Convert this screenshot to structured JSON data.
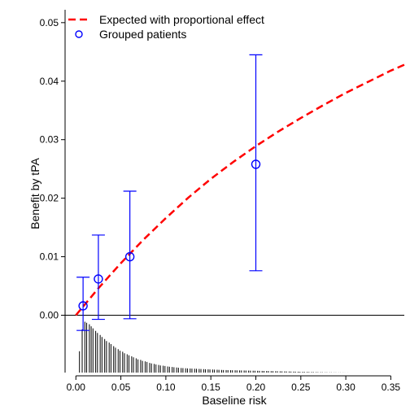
{
  "chart_data": {
    "type": "scatter",
    "xlabel": "Baseline risk",
    "ylabel": "Benefit by tPA",
    "xlim": [
      -0.012,
      0.365
    ],
    "ylim": [
      -0.0098,
      0.0522
    ],
    "xticks": [
      0.0,
      0.05,
      0.1,
      0.15,
      0.2,
      0.25,
      0.3,
      0.35
    ],
    "xtick_labels": [
      "0.00",
      "0.05",
      "0.10",
      "0.15",
      "0.20",
      "0.25",
      "0.30",
      "0.35"
    ],
    "yticks": [
      0.0,
      0.01,
      0.02,
      0.03,
      0.04,
      0.05
    ],
    "ytick_labels": [
      "0.00",
      "0.01",
      "0.02",
      "0.03",
      "0.04",
      "0.05"
    ],
    "legend_position": "top-left",
    "grid": false,
    "colors": {
      "expected": "#ff0000",
      "grouped": "#0000ff",
      "axis": "#000000"
    },
    "series": [
      {
        "name": "Expected with proportional effect",
        "kind": "dashed-line",
        "color": "#ff0000",
        "x": [
          0.0,
          0.025,
          0.05,
          0.075,
          0.1,
          0.125,
          0.15,
          0.175,
          0.2,
          0.225,
          0.25,
          0.275,
          0.3,
          0.325,
          0.35,
          0.365
        ],
        "y": [
          0.0,
          0.0046,
          0.0089,
          0.0129,
          0.0166,
          0.0201,
          0.0233,
          0.0262,
          0.0289,
          0.0314,
          0.0337,
          0.0359,
          0.038,
          0.0399,
          0.0418,
          0.0428
        ]
      },
      {
        "name": "Grouped patients",
        "kind": "points-with-errorbars",
        "color": "#0000ff",
        "points": [
          {
            "x": 0.008,
            "y": 0.0016,
            "lower": -0.0026,
            "upper": 0.0065
          },
          {
            "x": 0.025,
            "y": 0.0062,
            "lower": -0.0007,
            "upper": 0.0137
          },
          {
            "x": 0.06,
            "y": 0.01,
            "lower": -0.0006,
            "upper": 0.0212
          },
          {
            "x": 0.2,
            "y": 0.0258,
            "lower": 0.0076,
            "upper": 0.0445
          }
        ]
      }
    ],
    "reference_line": {
      "y": 0.0
    },
    "distribution_spikes": {
      "description": "rug histogram of baseline risk below zero line",
      "x": [
        0.004,
        0.007,
        0.01,
        0.012,
        0.015,
        0.017,
        0.019,
        0.022,
        0.024,
        0.027,
        0.029,
        0.032,
        0.034,
        0.037,
        0.039,
        0.042,
        0.044,
        0.047,
        0.049,
        0.052,
        0.054,
        0.057,
        0.059,
        0.062,
        0.064,
        0.067,
        0.069,
        0.072,
        0.074,
        0.077,
        0.079,
        0.082,
        0.084,
        0.087,
        0.089,
        0.092,
        0.094,
        0.097,
        0.099,
        0.102,
        0.104,
        0.107,
        0.109,
        0.112,
        0.114,
        0.117,
        0.119,
        0.122,
        0.124,
        0.127,
        0.129,
        0.132,
        0.134,
        0.137,
        0.139,
        0.142,
        0.144,
        0.147,
        0.149,
        0.152,
        0.154,
        0.157,
        0.159,
        0.162,
        0.164,
        0.167,
        0.169,
        0.172,
        0.174,
        0.177,
        0.179,
        0.182,
        0.184,
        0.187,
        0.189,
        0.192,
        0.194,
        0.197,
        0.199,
        0.202,
        0.204,
        0.207,
        0.209,
        0.212,
        0.214,
        0.217,
        0.219,
        0.222,
        0.224,
        0.227,
        0.229,
        0.232,
        0.234,
        0.237,
        0.239,
        0.242,
        0.244,
        0.247,
        0.249,
        0.252,
        0.254,
        0.257,
        0.259,
        0.262,
        0.264,
        0.267,
        0.269,
        0.272,
        0.274,
        0.277,
        0.279,
        0.282,
        0.284,
        0.287,
        0.289,
        0.292,
        0.294,
        0.297,
        0.299,
        0.302
      ],
      "relative_height": [
        0.42,
        0.85,
        1.0,
        0.98,
        0.95,
        0.91,
        0.87,
        0.82,
        0.78,
        0.74,
        0.7,
        0.66,
        0.62,
        0.59,
        0.56,
        0.52,
        0.49,
        0.46,
        0.43,
        0.41,
        0.38,
        0.36,
        0.34,
        0.32,
        0.3,
        0.28,
        0.26,
        0.25,
        0.23,
        0.22,
        0.21,
        0.19,
        0.18,
        0.17,
        0.16,
        0.15,
        0.14,
        0.135,
        0.13,
        0.12,
        0.115,
        0.11,
        0.105,
        0.1,
        0.095,
        0.09,
        0.088,
        0.085,
        0.082,
        0.08,
        0.078,
        0.076,
        0.074,
        0.072,
        0.07,
        0.068,
        0.066,
        0.064,
        0.062,
        0.06,
        0.058,
        0.056,
        0.054,
        0.052,
        0.05,
        0.049,
        0.048,
        0.047,
        0.046,
        0.045,
        0.044,
        0.043,
        0.042,
        0.041,
        0.04,
        0.039,
        0.038,
        0.037,
        0.036,
        0.035,
        0.034,
        0.033,
        0.032,
        0.031,
        0.03,
        0.029,
        0.028,
        0.027,
        0.026,
        0.025,
        0.024,
        0.023,
        0.022,
        0.021,
        0.02,
        0.019,
        0.018,
        0.017,
        0.016,
        0.015,
        0.014,
        0.013,
        0.012,
        0.011,
        0.01,
        0.009,
        0.008,
        0.007,
        0.006,
        0.005,
        0.005,
        0.004,
        0.004,
        0.003,
        0.003,
        0.002,
        0.002,
        0.002,
        0.001,
        0.001
      ]
    }
  }
}
